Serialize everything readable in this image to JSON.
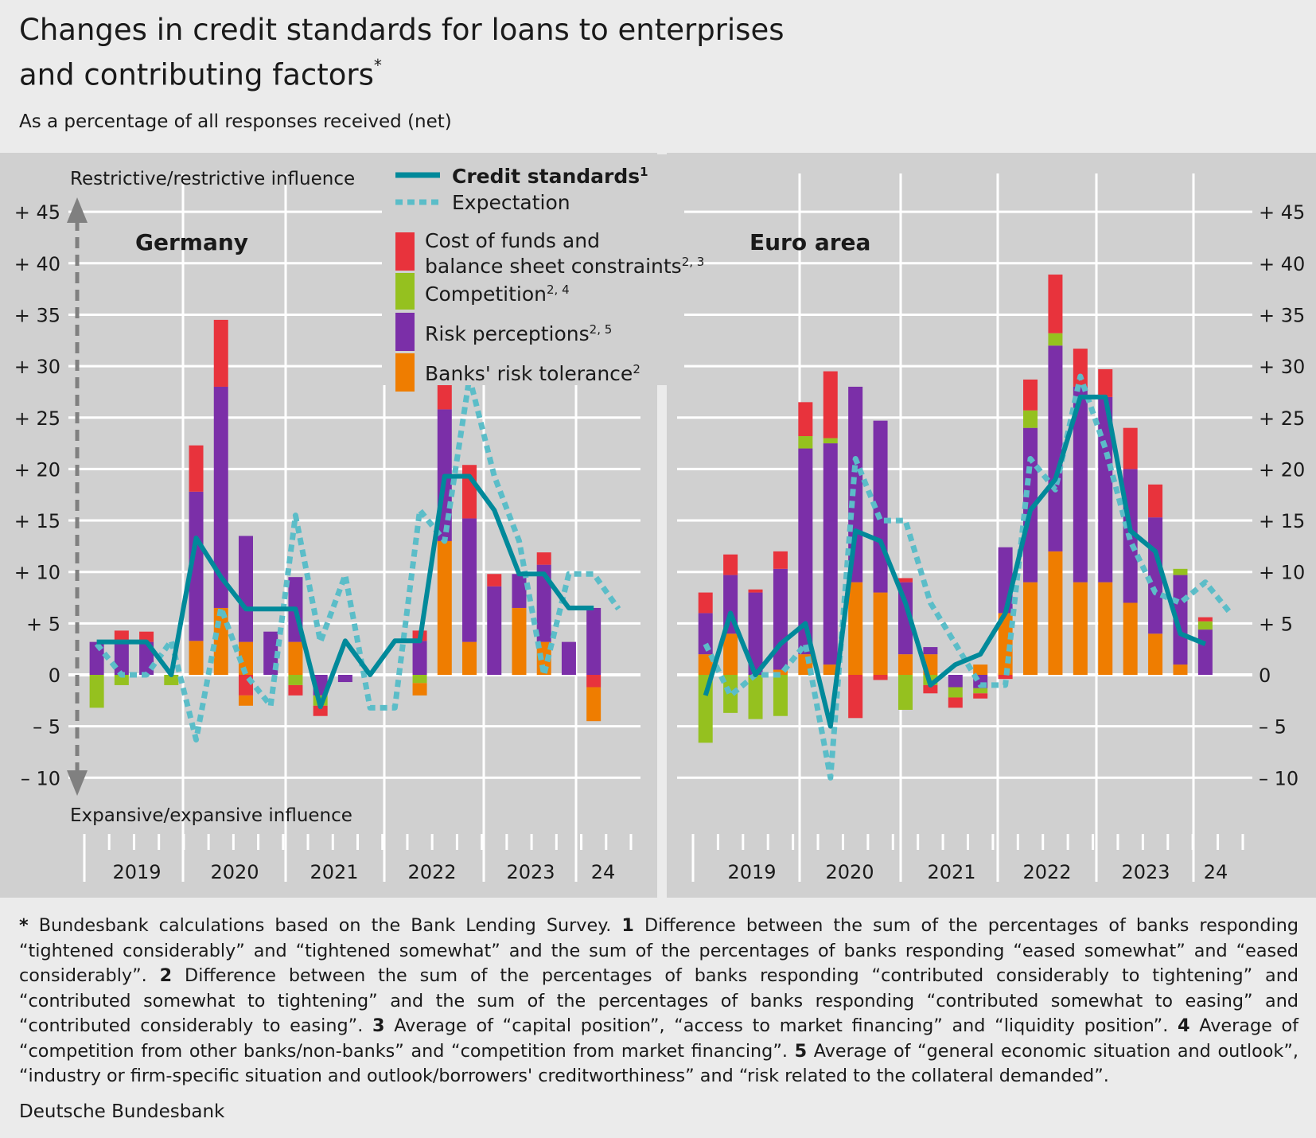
{
  "header": {
    "title_line1": "Changes in credit standards for loans to enterprises",
    "title_line2": "and contributing factors",
    "title_mark": "*",
    "subtitle": "As a percentage of all responses received (net)"
  },
  "colors": {
    "background": "#ebebeb",
    "panel": "#d0d0d0",
    "credit_standards": "#00899a",
    "expectation": "#5bbdc8",
    "cost_of_funds": "#e8333c",
    "competition": "#95c11f",
    "risk_perceptions": "#7b2fa8",
    "risk_tolerance": "#ef7d00",
    "arrow": "#808080"
  },
  "annotations": {
    "restrictive": "Restrictive/restrictive influence",
    "expansive": "Expansive/expansive influence"
  },
  "legend": {
    "credit_standards": "Credit standards",
    "credit_standards_note": "1",
    "expectation": "Expectation",
    "cost_of_funds_line1": "Cost of funds and",
    "cost_of_funds_line2": "balance sheet constraints",
    "cost_of_funds_note": "2, 3",
    "competition": "Competition",
    "competition_note": "2, 4",
    "risk_perceptions": "Risk perceptions",
    "risk_perceptions_note": "2, 5",
    "risk_tolerance": "Banks' risk tolerance",
    "risk_tolerance_note": "2"
  },
  "chart_data": [
    {
      "type": "bar",
      "panel_title": "Germany",
      "y_ticks": [
        "+ 45",
        "+ 40",
        "+ 35",
        "+ 30",
        "+ 25",
        "+ 20",
        "+ 15",
        "+ 10",
        "+ 5",
        "0",
        "– 5",
        "– 10"
      ],
      "y_tick_values": [
        45,
        40,
        35,
        30,
        25,
        20,
        15,
        10,
        5,
        0,
        -5,
        -10
      ],
      "ylim": [
        -10,
        50
      ],
      "x_labels": [
        "2019",
        "2020",
        "2021",
        "2022",
        "2023",
        "24"
      ],
      "quarters": [
        "2019Q1",
        "2019Q2",
        "2019Q3",
        "2019Q4",
        "2020Q1",
        "2020Q2",
        "2020Q3",
        "2020Q4",
        "2021Q1",
        "2021Q2",
        "2021Q3",
        "2021Q4",
        "2022Q1",
        "2022Q2",
        "2022Q3",
        "2022Q4",
        "2023Q1",
        "2023Q2",
        "2023Q3",
        "2023Q4",
        "2024Q1",
        "2024Q2"
      ],
      "stacks": {
        "risk_tolerance": [
          0,
          0,
          0,
          0,
          3.3,
          6.5,
          3.2,
          0,
          3.2,
          0,
          0,
          0,
          0,
          0,
          13,
          3.2,
          0,
          6.5,
          3.2,
          0,
          0,
          null
        ],
        "risk_perceptions": [
          3.2,
          3.3,
          3.2,
          0,
          14.5,
          21.5,
          10.3,
          4.2,
          6.3,
          -2,
          -0.7,
          0,
          0,
          3.3,
          12.8,
          12,
          8.6,
          3.3,
          7.5,
          3.2,
          6.5,
          null
        ],
        "competition": [
          -3.2,
          -1,
          0,
          -1,
          0,
          0,
          0,
          0,
          -1,
          -1,
          0,
          0,
          0,
          -0.8,
          0,
          0,
          0,
          0,
          0,
          0,
          0,
          null
        ],
        "cost_of_funds": [
          0,
          1,
          1,
          0,
          4.5,
          6.5,
          -2,
          0,
          -1,
          -1,
          0,
          0,
          0,
          1,
          4.3,
          5.2,
          1.2,
          0,
          1.2,
          0,
          -1.2,
          null
        ]
      },
      "stacks_negative_extra": {
        "risk_tolerance": [
          0,
          0,
          0,
          0,
          0,
          0,
          -1,
          0,
          0,
          0,
          0,
          0,
          0,
          -1.2,
          0,
          0,
          0,
          0,
          0,
          0,
          -3.3,
          null
        ],
        "risk_perceptions": [
          0,
          0,
          0,
          0,
          0,
          0,
          0,
          0,
          0,
          0,
          0,
          0,
          0,
          0,
          0,
          0,
          0,
          0,
          0,
          0,
          0,
          null
        ]
      },
      "credit_standards": [
        3.2,
        3.2,
        3.2,
        0,
        13.3,
        9.5,
        6.4,
        6.4,
        6.4,
        -3.1,
        3.3,
        0,
        3.3,
        3.3,
        19.3,
        19.3,
        16,
        9.8,
        9.8,
        6.5,
        6.5,
        null
      ],
      "expectation": [
        3,
        0,
        0,
        3.3,
        -6.3,
        6.5,
        0,
        -3,
        15.5,
        3.2,
        9.7,
        -3.2,
        -3.2,
        16,
        13,
        28.9,
        19.3,
        13,
        0,
        9.8,
        9.8,
        6.4
      ]
    },
    {
      "type": "bar",
      "panel_title": "Euro area",
      "y_ticks": [
        "+ 45",
        "+ 40",
        "+ 35",
        "+ 30",
        "+ 25",
        "+ 20",
        "+ 15",
        "+ 10",
        "+ 5",
        "0",
        "– 5",
        "– 10"
      ],
      "y_tick_values": [
        45,
        40,
        35,
        30,
        25,
        20,
        15,
        10,
        5,
        0,
        -5,
        -10
      ],
      "ylim": [
        -10,
        50
      ],
      "x_labels": [
        "2019",
        "2020",
        "2021",
        "2022",
        "2023",
        "24"
      ],
      "quarters": [
        "2019Q1",
        "2019Q2",
        "2019Q3",
        "2019Q4",
        "2020Q1",
        "2020Q2",
        "2020Q3",
        "2020Q4",
        "2021Q1",
        "2021Q2",
        "2021Q3",
        "2021Q4",
        "2022Q1",
        "2022Q2",
        "2022Q3",
        "2022Q4",
        "2023Q1",
        "2023Q2",
        "2023Q3",
        "2023Q4",
        "2024Q1",
        "2024Q2"
      ],
      "stacks": {
        "risk_tolerance": [
          2,
          4,
          0,
          0.5,
          2,
          1,
          9,
          8,
          2,
          2,
          0,
          1,
          6,
          9,
          12,
          9,
          9,
          7,
          4,
          1,
          0,
          null
        ],
        "risk_perceptions": [
          4,
          5.7,
          8,
          9.8,
          20,
          21.5,
          19,
          16.7,
          7,
          0.7,
          -1.2,
          -1.3,
          6.4,
          15,
          20,
          19,
          18,
          13,
          11.3,
          8.7,
          4.4,
          null
        ],
        "competition": [
          -6.6,
          -3.7,
          -4.3,
          -4,
          1.2,
          0.5,
          0,
          0,
          -3.4,
          -1,
          -1,
          -0.5,
          0,
          1.7,
          1.2,
          0,
          0,
          0,
          0,
          0.6,
          0.8,
          null
        ],
        "cost_of_funds": [
          2,
          2,
          0.3,
          1.7,
          3.3,
          6.5,
          -4.2,
          -0.5,
          0.4,
          -0.8,
          -1,
          -0.5,
          -0.4,
          3,
          5.7,
          3.7,
          2.7,
          4,
          3.2,
          0,
          0.4,
          null
        ]
      },
      "credit_standards": [
        -2,
        6,
        0,
        3,
        5,
        -5,
        14,
        13,
        7,
        -1,
        1,
        2,
        6,
        16,
        19,
        27,
        27,
        14,
        12,
        4,
        3,
        null
      ],
      "expectation": [
        3,
        -2,
        0,
        0,
        3,
        -10,
        21,
        15,
        15,
        7,
        3,
        -1,
        -1,
        21,
        18,
        29,
        22,
        13,
        8,
        7,
        9,
        6
      ]
    }
  ],
  "footnote": {
    "star": "*",
    "text_star": " Bundesbank calculations based on the Bank Lending Survey. ",
    "n1": "1",
    "text1": " Difference between the sum of the percentages of banks responding “tightened considerably” and “tightened somewhat” and the sum of the percentages of banks responding “eased somewhat” and “eased considerably”. ",
    "n2": "2",
    "text2": " Difference between the sum of the percentages of banks responding “contributed considerably to tightening” and “contributed somewhat to tightening” and the sum of the percentages of banks responding “contributed somewhat to easing” and “contributed considerably to easing”. ",
    "n3": "3",
    "text3": " Average of “capital position”, “access to market financing” and “liquidity position”. ",
    "n4": "4",
    "text4": " Average of “competition from other banks/non-banks” and “competition from market financing”. ",
    "n5": "5",
    "text5": " Average of “general economic situation and outlook”, “industry or firm-specific situation and outlook/borrowers' creditworthiness” and “risk related to the collateral demanded”."
  },
  "source": "Deutsche Bundesbank"
}
